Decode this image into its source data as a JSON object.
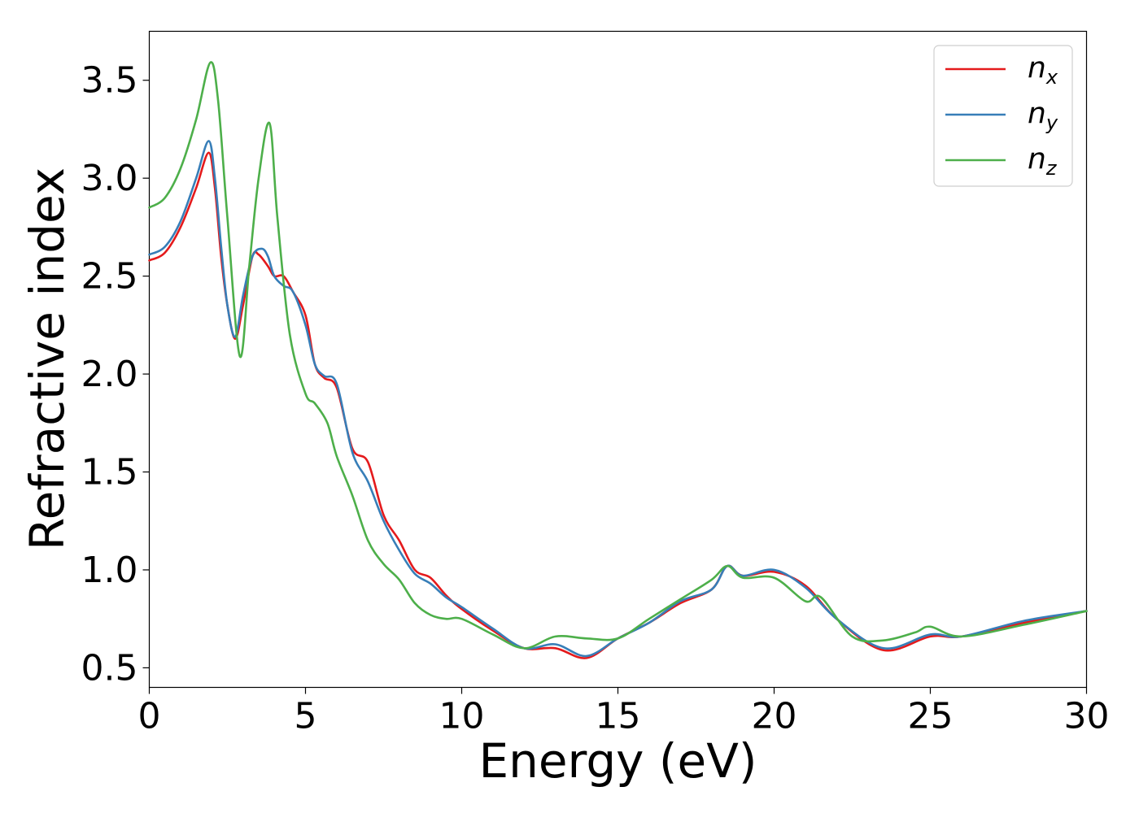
{
  "chart_data": {
    "type": "line",
    "title": "",
    "xlabel": "Energy (eV)",
    "ylabel": "Refractive index",
    "xlim": [
      0,
      30
    ],
    "ylim": [
      0.4,
      3.75
    ],
    "xticks": [
      0,
      5,
      10,
      15,
      20,
      25,
      30
    ],
    "xtick_labels": [
      "0",
      "5",
      "10",
      "15",
      "20",
      "25",
      "30"
    ],
    "yticks": [
      0.5,
      1.0,
      1.5,
      2.0,
      2.5,
      3.0,
      3.5
    ],
    "ytick_labels": [
      "0.5",
      "1.0",
      "1.5",
      "2.0",
      "2.5",
      "3.0",
      "3.5"
    ],
    "grid": false,
    "legend_position": "top-right",
    "series": [
      {
        "name": "n",
        "subscript": "x",
        "color": "#e41a1c",
        "x": [
          0,
          0.5,
          1.0,
          1.5,
          1.9,
          2.1,
          2.3,
          2.5,
          2.75,
          3.0,
          3.3,
          3.5,
          3.8,
          4.0,
          4.3,
          4.6,
          5.0,
          5.3,
          5.6,
          6.0,
          6.5,
          7.0,
          7.5,
          8.0,
          8.5,
          9.0,
          9.5,
          10.0,
          11.0,
          12.0,
          13.0,
          14.0,
          15.0,
          16.0,
          17.0,
          18.0,
          18.5,
          19.0,
          20.0,
          21.0,
          22.0,
          23.5,
          25.0,
          26.0,
          28.0,
          30.0
        ],
        "values": [
          2.58,
          2.62,
          2.75,
          2.95,
          3.13,
          2.95,
          2.6,
          2.35,
          2.18,
          2.35,
          2.6,
          2.61,
          2.55,
          2.5,
          2.5,
          2.42,
          2.3,
          2.05,
          1.98,
          1.93,
          1.62,
          1.55,
          1.28,
          1.15,
          1.0,
          0.96,
          0.87,
          0.8,
          0.69,
          0.6,
          0.6,
          0.55,
          0.65,
          0.73,
          0.83,
          0.9,
          1.02,
          0.97,
          0.99,
          0.92,
          0.75,
          0.59,
          0.66,
          0.66,
          0.73,
          0.79
        ]
      },
      {
        "name": "n",
        "subscript": "y",
        "color": "#377eb8",
        "x": [
          0,
          0.5,
          1.0,
          1.5,
          1.9,
          2.1,
          2.3,
          2.5,
          2.75,
          3.0,
          3.3,
          3.6,
          3.8,
          4.0,
          4.3,
          4.6,
          5.0,
          5.3,
          5.6,
          6.0,
          6.5,
          7.0,
          7.5,
          8.0,
          8.5,
          9.0,
          9.5,
          10.0,
          11.0,
          12.0,
          13.0,
          14.0,
          15.0,
          16.0,
          17.0,
          18.0,
          18.5,
          19.0,
          20.0,
          21.0,
          22.0,
          23.5,
          25.0,
          26.0,
          28.0,
          30.0
        ],
        "values": [
          2.61,
          2.65,
          2.78,
          3.0,
          3.19,
          3.0,
          2.65,
          2.35,
          2.19,
          2.4,
          2.6,
          2.64,
          2.6,
          2.5,
          2.45,
          2.42,
          2.25,
          2.05,
          1.99,
          1.95,
          1.6,
          1.45,
          1.25,
          1.1,
          0.98,
          0.93,
          0.86,
          0.81,
          0.7,
          0.6,
          0.62,
          0.56,
          0.65,
          0.73,
          0.84,
          0.9,
          1.02,
          0.97,
          1.0,
          0.91,
          0.75,
          0.6,
          0.67,
          0.66,
          0.74,
          0.79
        ]
      },
      {
        "name": "n",
        "subscript": "z",
        "color": "#4daf4a",
        "x": [
          0,
          0.5,
          1.0,
          1.5,
          1.95,
          2.2,
          2.5,
          2.9,
          3.2,
          3.5,
          3.85,
          4.1,
          4.5,
          5.0,
          5.3,
          5.7,
          6.0,
          6.5,
          7.0,
          7.5,
          8.0,
          8.5,
          9.0,
          9.5,
          10.0,
          11.0,
          12.0,
          13.0,
          14.0,
          15.0,
          16.0,
          17.0,
          18.0,
          18.5,
          19.0,
          20.0,
          21.0,
          21.5,
          22.5,
          23.5,
          24.5,
          25.0,
          26.0,
          28.0,
          30.0
        ],
        "values": [
          2.85,
          2.9,
          3.05,
          3.3,
          3.59,
          3.4,
          2.8,
          2.09,
          2.55,
          3.0,
          3.28,
          2.8,
          2.2,
          1.9,
          1.85,
          1.75,
          1.58,
          1.38,
          1.15,
          1.03,
          0.95,
          0.83,
          0.77,
          0.75,
          0.75,
          0.67,
          0.6,
          0.66,
          0.65,
          0.65,
          0.75,
          0.85,
          0.95,
          1.02,
          0.96,
          0.96,
          0.84,
          0.86,
          0.66,
          0.64,
          0.68,
          0.71,
          0.66,
          0.72,
          0.79
        ]
      }
    ]
  }
}
